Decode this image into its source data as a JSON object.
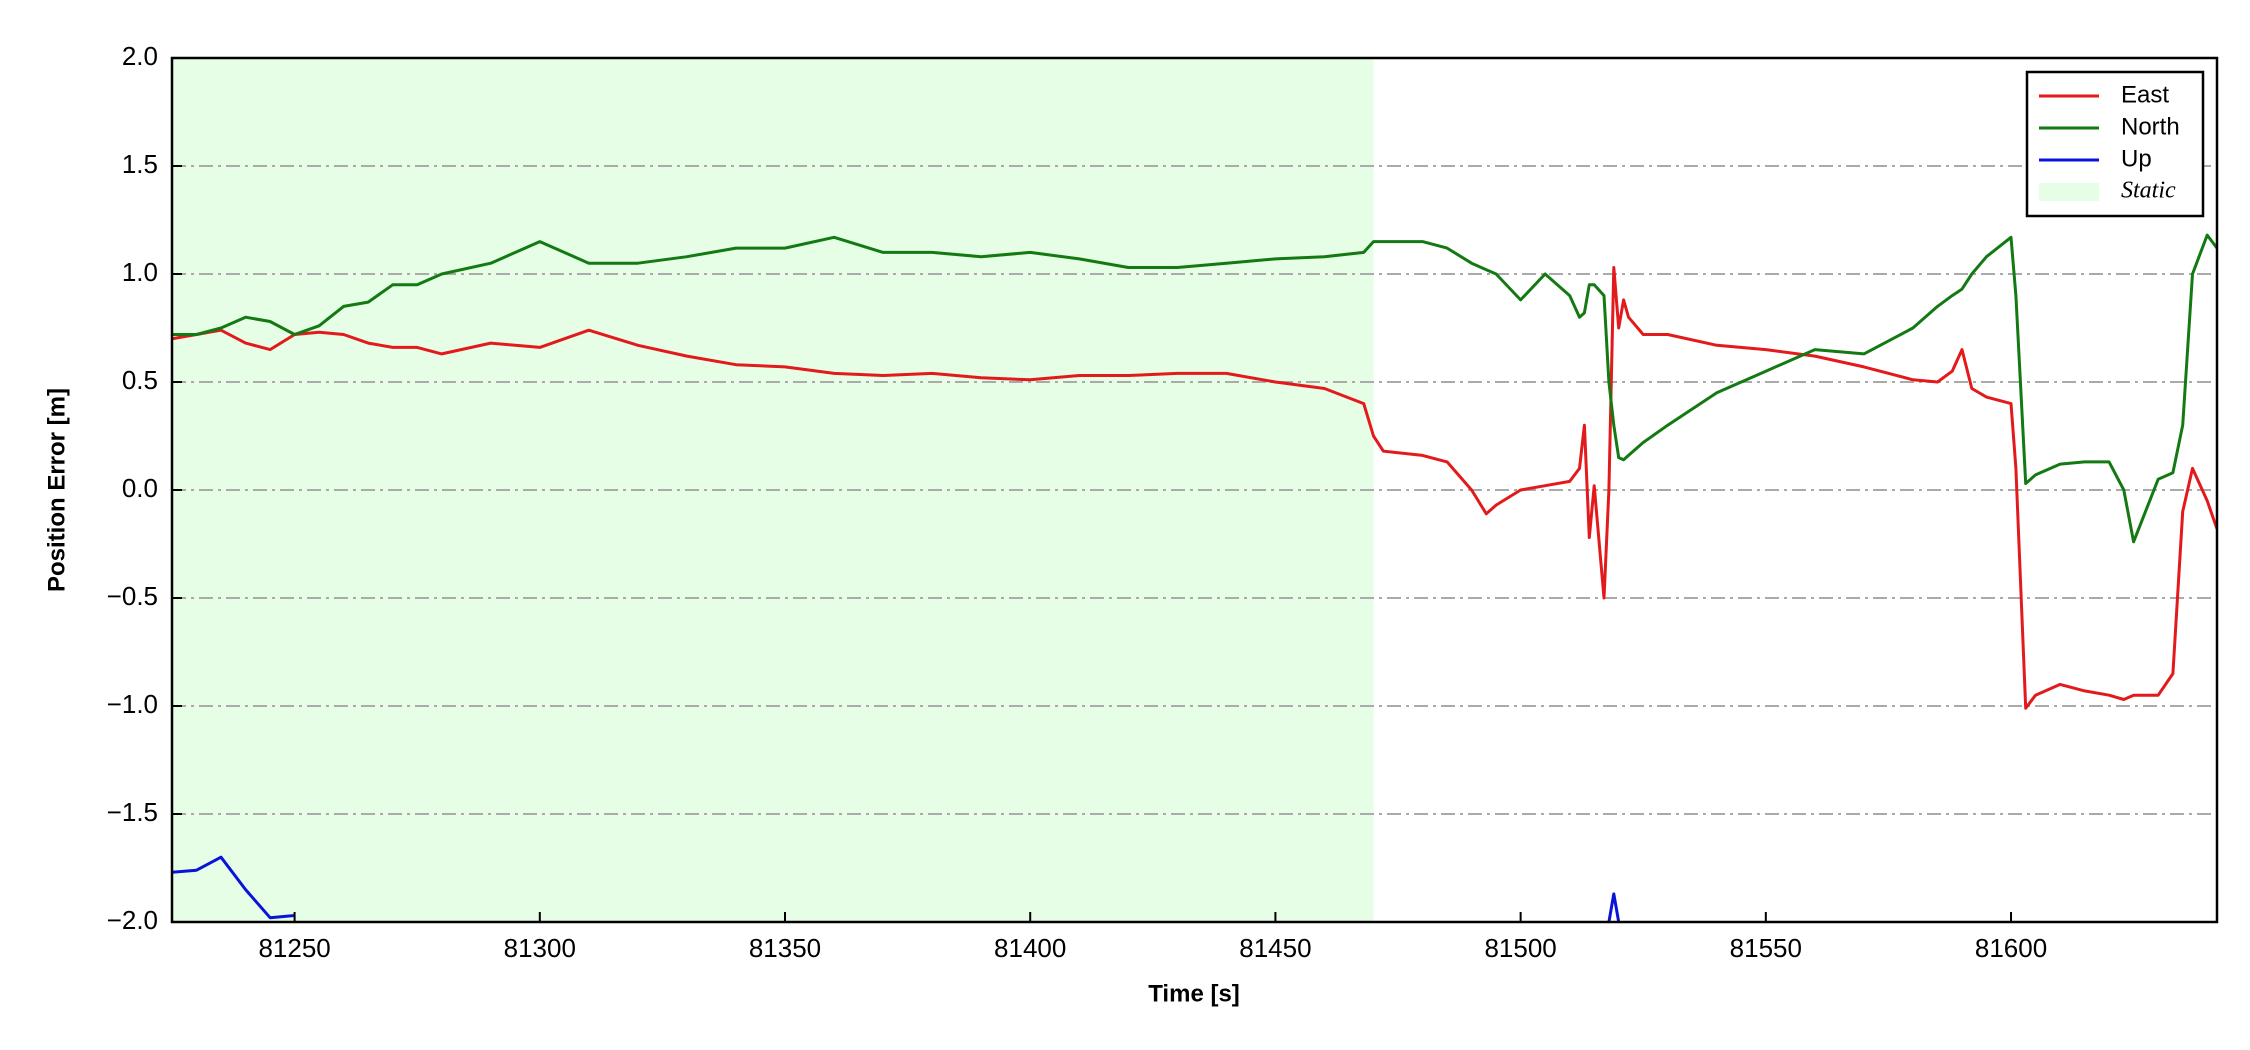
{
  "chart_data": {
    "type": "line",
    "xlabel": "Time [s]",
    "ylabel": "Position Error [m]",
    "x": [
      81225,
      81230,
      81235,
      81240,
      81245,
      81250,
      81255,
      81260,
      81265,
      81270,
      81275,
      81280,
      81290,
      81300,
      81310,
      81320,
      81330,
      81340,
      81350,
      81360,
      81370,
      81380,
      81390,
      81400,
      81410,
      81420,
      81430,
      81440,
      81450,
      81460,
      81468,
      81470,
      81472,
      81480,
      81485,
      81490,
      81493,
      81495,
      81500,
      81505,
      81510,
      81512,
      81513,
      81514,
      81515,
      81517,
      81518,
      81519,
      81520,
      81521,
      81522,
      81525,
      81530,
      81540,
      81550,
      81560,
      81570,
      81580,
      81585,
      81588,
      81590,
      81592,
      81595,
      81600,
      81601,
      81603,
      81605,
      81610,
      81615,
      81620,
      81623,
      81625,
      81630,
      81633,
      81635,
      81637,
      81640,
      81642
    ],
    "series": [
      {
        "name": "East",
        "color": "#e31a1c",
        "values": [
          0.7,
          0.72,
          0.74,
          0.68,
          0.65,
          0.72,
          0.73,
          0.72,
          0.68,
          0.66,
          0.66,
          0.63,
          0.68,
          0.66,
          0.74,
          0.67,
          0.62,
          0.58,
          0.57,
          0.54,
          0.53,
          0.54,
          0.52,
          0.51,
          0.53,
          0.53,
          0.54,
          0.54,
          0.5,
          0.47,
          0.4,
          0.25,
          0.18,
          0.16,
          0.13,
          0.0,
          -0.11,
          -0.07,
          0.0,
          0.02,
          0.04,
          0.1,
          0.3,
          -0.22,
          0.02,
          -0.5,
          0.0,
          1.03,
          0.75,
          0.88,
          0.8,
          0.72,
          0.72,
          0.67,
          0.65,
          0.62,
          0.57,
          0.51,
          0.5,
          0.55,
          0.65,
          0.47,
          0.43,
          0.4,
          0.1,
          -1.01,
          -0.95,
          -0.9,
          -0.93,
          -0.95,
          -0.97,
          -0.95,
          -0.95,
          -0.85,
          -0.1,
          0.1,
          -0.05,
          -0.18
        ]
      },
      {
        "name": "North",
        "color": "#137a13",
        "values": [
          0.72,
          0.72,
          0.75,
          0.8,
          0.78,
          0.72,
          0.76,
          0.85,
          0.87,
          0.95,
          0.95,
          1.0,
          1.05,
          1.15,
          1.05,
          1.05,
          1.08,
          1.12,
          1.12,
          1.17,
          1.1,
          1.1,
          1.08,
          1.1,
          1.07,
          1.03,
          1.03,
          1.05,
          1.07,
          1.08,
          1.1,
          1.15,
          1.15,
          1.15,
          1.12,
          1.05,
          1.02,
          1.0,
          0.88,
          1.0,
          0.9,
          0.8,
          0.82,
          0.95,
          0.95,
          0.9,
          0.5,
          0.3,
          0.15,
          0.14,
          0.16,
          0.22,
          0.3,
          0.45,
          0.55,
          0.65,
          0.63,
          0.75,
          0.85,
          0.9,
          0.93,
          1.0,
          1.08,
          1.17,
          0.9,
          0.03,
          0.07,
          0.12,
          0.13,
          0.13,
          0.0,
          -0.24,
          0.05,
          0.08,
          0.3,
          1.0,
          1.18,
          1.12
        ]
      },
      {
        "name": "Up",
        "color": "#0a14d9",
        "values": [
          -1.77,
          -1.76,
          -1.7,
          -1.85,
          -1.98,
          -1.97,
          null,
          null,
          null,
          null,
          null,
          null,
          null,
          null,
          null,
          null,
          null,
          null,
          null,
          null,
          null,
          null,
          null,
          null,
          null,
          null,
          null,
          null,
          null,
          null,
          null,
          null,
          null,
          null,
          null,
          null,
          null,
          null,
          null,
          null,
          null,
          null,
          null,
          null,
          null,
          null,
          -2.0,
          -1.87,
          -2.0,
          null,
          null,
          null,
          null,
          null,
          null,
          null,
          null,
          null,
          null,
          null,
          null,
          null,
          null,
          null,
          null,
          null,
          null,
          null,
          null,
          null,
          null,
          null,
          null,
          null,
          null,
          null,
          null,
          null
        ]
      }
    ],
    "spans": [
      {
        "name": "Static",
        "x0": 81225,
        "x1": 81470,
        "color": "#e6fde6"
      }
    ],
    "xlim": [
      81225,
      81642
    ],
    "ylim": [
      -2,
      2
    ],
    "xticks": [
      81250,
      81300,
      81350,
      81400,
      81450,
      81500,
      81550,
      81600
    ],
    "yticks": [
      {
        "value": -2,
        "label": "−2.0"
      },
      {
        "value": -1.5,
        "label": "−1.5"
      },
      {
        "value": -1,
        "label": "−1.0"
      },
      {
        "value": -0.5,
        "label": "−0.5"
      },
      {
        "value": 0,
        "label": "0.0"
      },
      {
        "value": 0.5,
        "label": "0.5"
      },
      {
        "value": 1,
        "label": "1.0"
      },
      {
        "value": 1.5,
        "label": "1.5"
      },
      {
        "value": 2,
        "label": "2.0"
      }
    ],
    "grid": true,
    "legend": "upper right"
  }
}
